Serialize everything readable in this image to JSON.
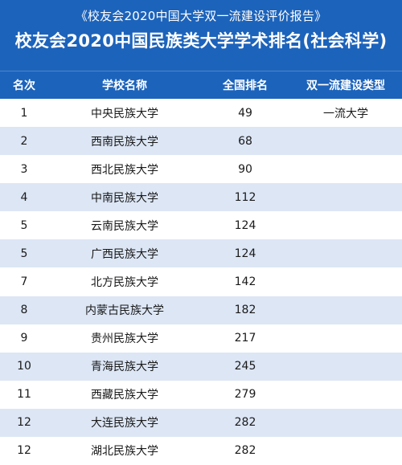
{
  "header": {
    "subtitle": "《校友会2020中国大学双一流建设评价报告》",
    "title": "校友会2020中国民族类大学学术排名(社会科学)"
  },
  "table": {
    "columns": [
      "名次",
      "学校名称",
      "全国排名",
      "双一流建设类型"
    ],
    "rows": [
      [
        "1",
        "中央民族大学",
        "49",
        "一流大学"
      ],
      [
        "2",
        "西南民族大学",
        "68",
        ""
      ],
      [
        "3",
        "西北民族大学",
        "90",
        ""
      ],
      [
        "4",
        "中南民族大学",
        "112",
        ""
      ],
      [
        "5",
        "云南民族大学",
        "124",
        ""
      ],
      [
        "5",
        "广西民族大学",
        "124",
        ""
      ],
      [
        "7",
        "北方民族大学",
        "142",
        ""
      ],
      [
        "8",
        "内蒙古民族大学",
        "182",
        ""
      ],
      [
        "9",
        "贵州民族大学",
        "217",
        ""
      ],
      [
        "10",
        "青海民族大学",
        "245",
        ""
      ],
      [
        "11",
        "西藏民族大学",
        "279",
        ""
      ],
      [
        "12",
        "大连民族大学",
        "282",
        ""
      ],
      [
        "12",
        "湖北民族大学",
        "282",
        ""
      ]
    ]
  }
}
